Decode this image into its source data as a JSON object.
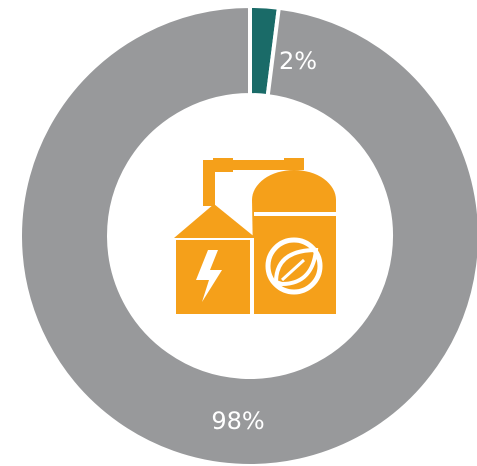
{
  "chart_data": {
    "type": "donut",
    "values": [
      2,
      98
    ],
    "value_labels": [
      "2%",
      "98%"
    ],
    "colors": [
      "#1a6b68",
      "#98999b"
    ]
  }
}
